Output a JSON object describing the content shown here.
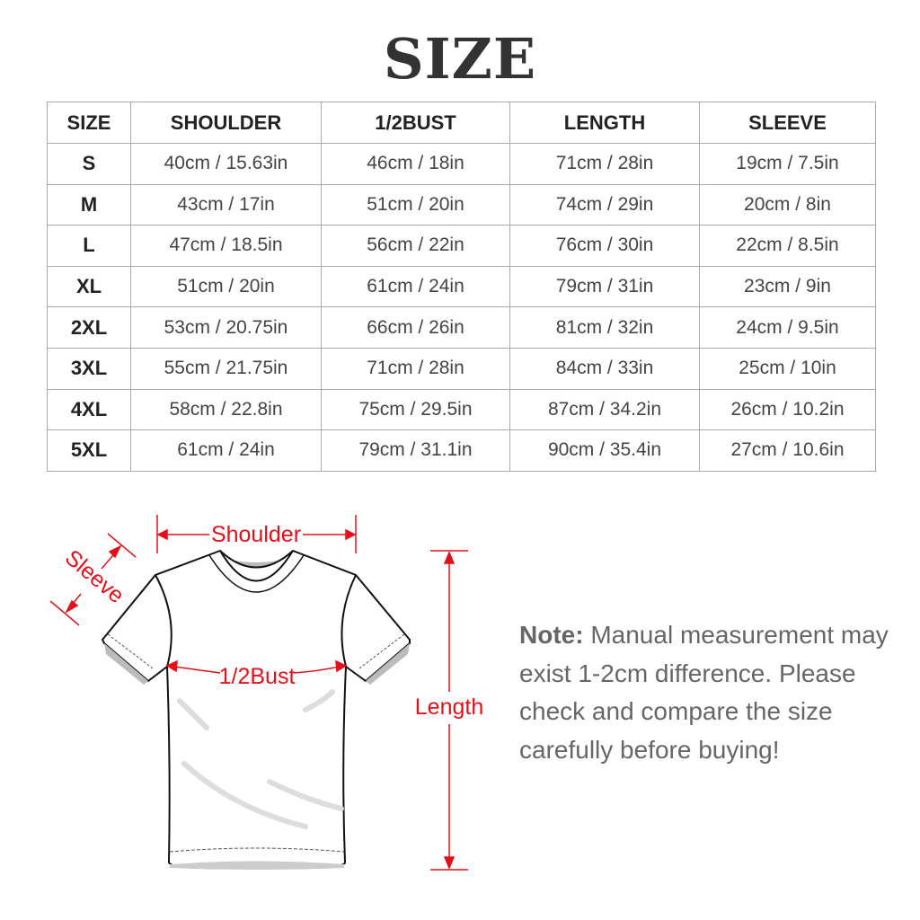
{
  "title": "SIZE",
  "table": {
    "headers": [
      "SIZE",
      "SHOULDER",
      "1/2BUST",
      "LENGTH",
      "SLEEVE"
    ],
    "rows": [
      [
        "S",
        "40cm / 15.63in",
        "46cm / 18in",
        "71cm / 28in",
        "19cm / 7.5in"
      ],
      [
        "M",
        "43cm / 17in",
        "51cm / 20in",
        "74cm / 29in",
        "20cm / 8in"
      ],
      [
        "L",
        "47cm / 18.5in",
        "56cm / 22in",
        "76cm / 30in",
        "22cm / 8.5in"
      ],
      [
        "XL",
        "51cm / 20in",
        "61cm / 24in",
        "79cm / 31in",
        "23cm / 9in"
      ],
      [
        "2XL",
        "53cm / 20.75in",
        "66cm / 26in",
        "81cm / 32in",
        "24cm / 9.5in"
      ],
      [
        "3XL",
        "55cm / 21.75in",
        "71cm / 28in",
        "84cm / 33in",
        "25cm / 10in"
      ],
      [
        "4XL",
        "58cm / 22.8in",
        "75cm / 29.5in",
        "87cm / 34.2in",
        "26cm / 10.2in"
      ],
      [
        "5XL",
        "61cm / 24in",
        "79cm / 31.1in",
        "90cm / 35.4in",
        "27cm / 10.6in"
      ]
    ]
  },
  "diagram": {
    "shoulder_label": "Shoulder",
    "sleeve_label": "Sleeve",
    "bust_label": "1/2Bust",
    "length_label": "Length",
    "measure_color": "#e3101a"
  },
  "note": {
    "label": "Note:",
    "text": "Manual measurement may exist 1-2cm difference. Please check and compare the size carefully before buying!"
  }
}
